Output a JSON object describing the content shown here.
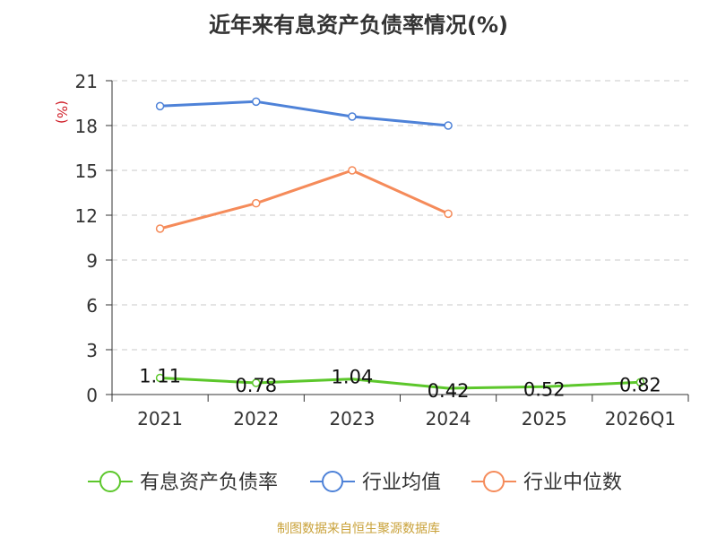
{
  "chart_data": {
    "type": "line",
    "title": "近年来有息资产负债率情况(%)",
    "ylabel": "(%)",
    "categories": [
      "2021",
      "2022",
      "2023",
      "2024",
      "2025",
      "2026Q1"
    ],
    "ylim": [
      0,
      21
    ],
    "yticks": [
      "0",
      "3",
      "6",
      "9",
      "12",
      "15",
      "18",
      "21"
    ],
    "grid": true,
    "legend_position": "bottom",
    "series": [
      {
        "name": "有息资产负债率",
        "color": "#5cc72b",
        "values": [
          1.11,
          0.78,
          1.04,
          0.42,
          0.52,
          0.82
        ],
        "labels": [
          "1.11",
          "0.78",
          "1.04",
          "0.42",
          "0.52",
          "0.82"
        ],
        "markers": [
          true,
          true,
          false,
          false,
          false,
          true
        ]
      },
      {
        "name": "行业均值",
        "color": "#4e82d8",
        "values": [
          19.3,
          19.6,
          18.6,
          18.0,
          null,
          null
        ],
        "markers": [
          true,
          true,
          true,
          true,
          false,
          false
        ]
      },
      {
        "name": "行业中位数",
        "color": "#f58b5a",
        "values": [
          11.1,
          12.8,
          15.0,
          12.1,
          null,
          null
        ],
        "markers": [
          true,
          true,
          true,
          true,
          false,
          false
        ]
      }
    ],
    "source": "制图数据来自恒生聚源数据库"
  }
}
